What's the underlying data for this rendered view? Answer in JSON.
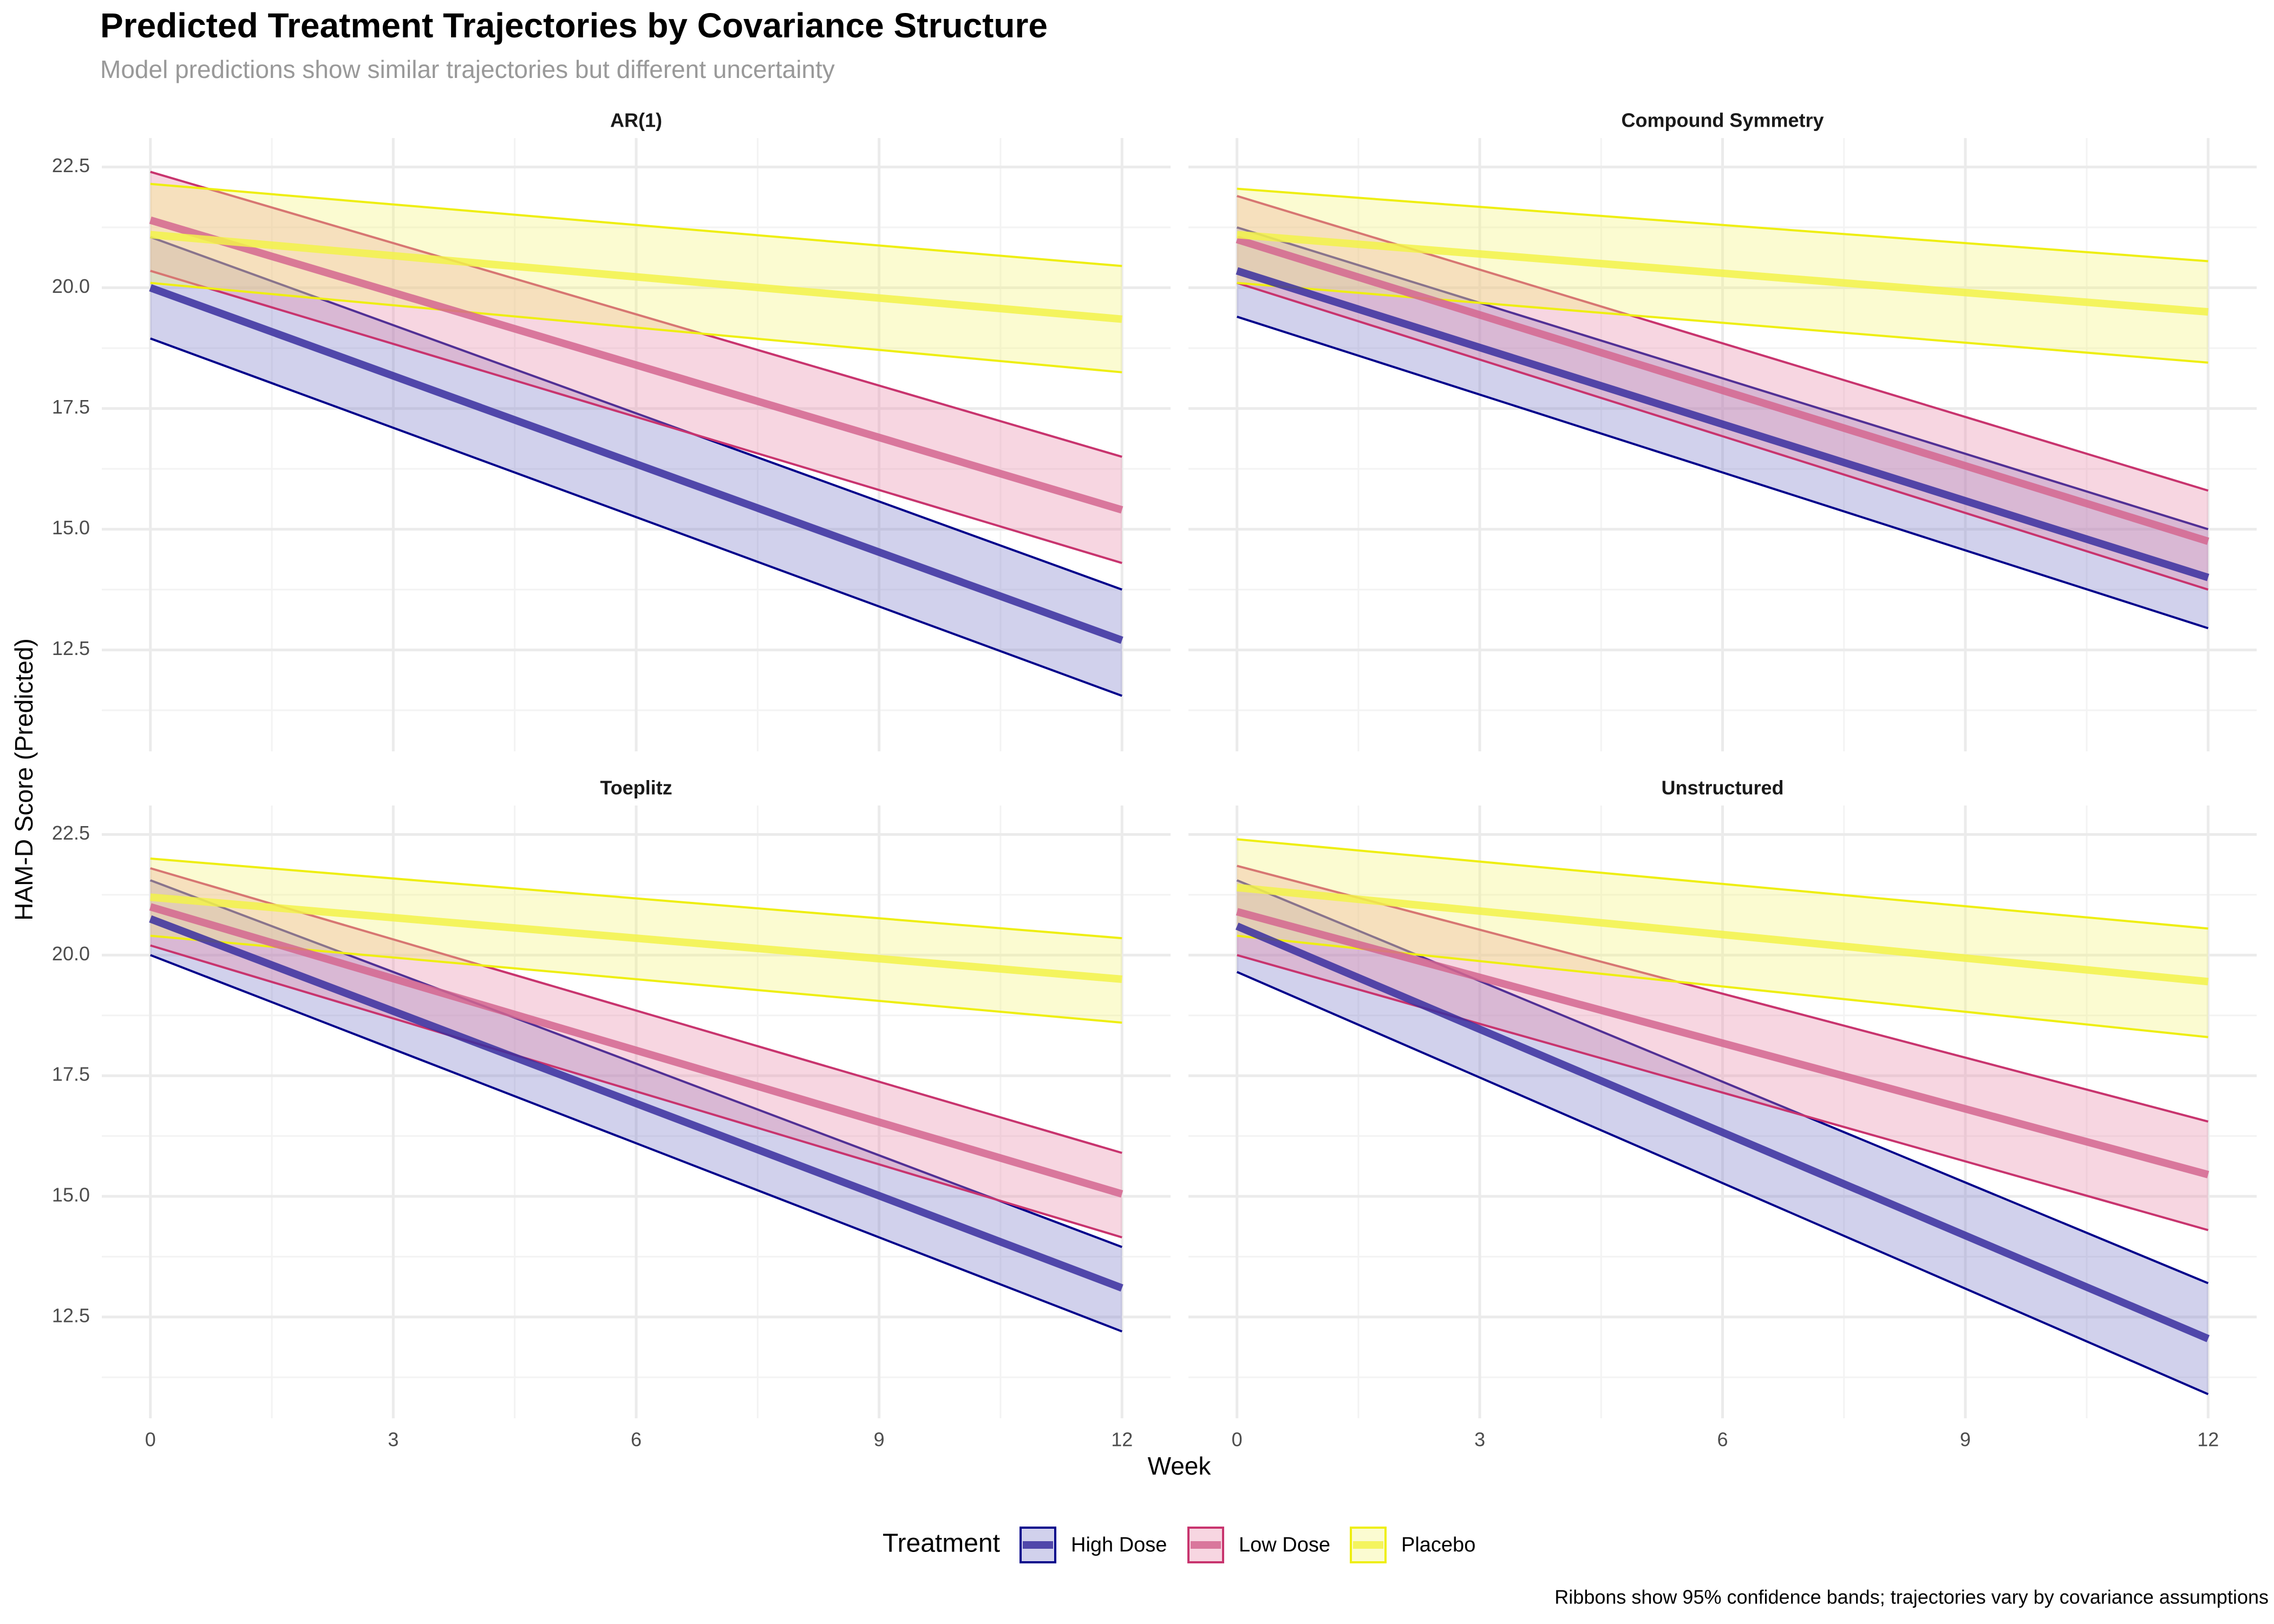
{
  "title": "Predicted Treatment Trajectories by Covariance Structure",
  "subtitle": "Model predictions show similar trajectories but different uncertainty",
  "x_label": "Week",
  "y_label": "HAM-D Score (Predicted)",
  "legend_title": "Treatment",
  "caption": "Ribbons show 95% confidence bands; trajectories vary by covariance assumptions",
  "chart_data": [
    {
      "type": "line",
      "title": "AR(1)",
      "x": [
        0,
        12
      ],
      "xlim": [
        -0.6,
        12.6
      ],
      "xticks": [
        0,
        3,
        6,
        9,
        12
      ],
      "ylim": [
        10.4,
        23.1
      ],
      "yticks": [
        12.5,
        {
          "value": 15,
          "label": "15.0"
        },
        17.5,
        {
          "value": 20,
          "label": "20.0"
        },
        22.5
      ],
      "grid": true,
      "series": [
        {
          "name": "High Dose",
          "color": "#00008b",
          "line_color": "#3a2f9f",
          "fill": "#7b7bc8",
          "values": [
            20.0,
            12.7
          ],
          "lower": [
            18.95,
            11.55
          ],
          "upper": [
            21.05,
            13.75
          ]
        },
        {
          "name": "Low Dose",
          "color": "#c8346e",
          "line_color": "#d4668f",
          "fill": "#e889a8",
          "values": [
            21.4,
            15.4
          ],
          "lower": [
            20.35,
            14.3
          ],
          "upper": [
            22.4,
            16.5
          ]
        },
        {
          "name": "Placebo",
          "color": "#eeee10",
          "line_color": "#f2f24a",
          "fill": "#f4f47a",
          "values": [
            21.1,
            19.35
          ],
          "lower": [
            20.1,
            18.25
          ],
          "upper": [
            22.15,
            20.45
          ]
        }
      ]
    },
    {
      "type": "line",
      "title": "Compound Symmetry",
      "x": [
        0,
        12
      ],
      "xlim": [
        -0.6,
        12.6
      ],
      "xticks": [
        0,
        3,
        6,
        9,
        12
      ],
      "ylim": [
        10.4,
        23.1
      ],
      "yticks": [
        12.5,
        {
          "value": 15,
          "label": "15.0"
        },
        17.5,
        {
          "value": 20,
          "label": "20.0"
        },
        22.5
      ],
      "grid": true,
      "series": [
        {
          "name": "High Dose",
          "color": "#00008b",
          "line_color": "#3a2f9f",
          "fill": "#7b7bc8",
          "values": [
            20.35,
            14.0
          ],
          "lower": [
            19.4,
            12.95
          ],
          "upper": [
            21.25,
            15.0
          ]
        },
        {
          "name": "Low Dose",
          "color": "#c8346e",
          "line_color": "#d4668f",
          "fill": "#e889a8",
          "values": [
            21.0,
            14.75
          ],
          "lower": [
            20.1,
            13.75
          ],
          "upper": [
            21.9,
            15.8
          ]
        },
        {
          "name": "Placebo",
          "color": "#eeee10",
          "line_color": "#f2f24a",
          "fill": "#f4f47a",
          "values": [
            21.1,
            19.5
          ],
          "lower": [
            20.1,
            18.45
          ],
          "upper": [
            22.05,
            20.55
          ]
        }
      ]
    },
    {
      "type": "line",
      "title": "Toeplitz",
      "x": [
        0,
        12
      ],
      "xlim": [
        -0.6,
        12.6
      ],
      "xticks": [
        0,
        3,
        6,
        9,
        12
      ],
      "ylim": [
        10.4,
        23.1
      ],
      "yticks": [
        12.5,
        {
          "value": 15,
          "label": "15.0"
        },
        17.5,
        {
          "value": 20,
          "label": "20.0"
        },
        22.5
      ],
      "grid": true,
      "series": [
        {
          "name": "High Dose",
          "color": "#00008b",
          "line_color": "#3a2f9f",
          "fill": "#7b7bc8",
          "values": [
            20.75,
            13.1
          ],
          "lower": [
            20.0,
            12.2
          ],
          "upper": [
            21.55,
            13.95
          ]
        },
        {
          "name": "Low Dose",
          "color": "#c8346e",
          "line_color": "#d4668f",
          "fill": "#e889a8",
          "values": [
            21.0,
            15.05
          ],
          "lower": [
            20.2,
            14.15
          ],
          "upper": [
            21.8,
            15.9
          ]
        },
        {
          "name": "Placebo",
          "color": "#eeee10",
          "line_color": "#f2f24a",
          "fill": "#f4f47a",
          "values": [
            21.2,
            19.5
          ],
          "lower": [
            20.4,
            18.6
          ],
          "upper": [
            22.0,
            20.35
          ]
        }
      ]
    },
    {
      "type": "line",
      "title": "Unstructured",
      "x": [
        0,
        12
      ],
      "xlim": [
        -0.6,
        12.6
      ],
      "xticks": [
        0,
        3,
        6,
        9,
        12
      ],
      "ylim": [
        10.4,
        23.1
      ],
      "yticks": [
        12.5,
        {
          "value": 15,
          "label": "15.0"
        },
        17.5,
        {
          "value": 20,
          "label": "20.0"
        },
        22.5
      ],
      "grid": true,
      "series": [
        {
          "name": "High Dose",
          "color": "#00008b",
          "line_color": "#3a2f9f",
          "fill": "#7b7bc8",
          "values": [
            20.6,
            12.05
          ],
          "lower": [
            19.65,
            10.9
          ],
          "upper": [
            21.55,
            13.2
          ]
        },
        {
          "name": "Low Dose",
          "color": "#c8346e",
          "line_color": "#d4668f",
          "fill": "#e889a8",
          "values": [
            20.9,
            15.45
          ],
          "lower": [
            20.0,
            14.3
          ],
          "upper": [
            21.85,
            16.55
          ]
        },
        {
          "name": "Placebo",
          "color": "#eeee10",
          "line_color": "#f2f24a",
          "fill": "#f4f47a",
          "values": [
            21.4,
            19.45
          ],
          "lower": [
            20.4,
            18.3
          ],
          "upper": [
            22.4,
            20.55
          ]
        }
      ]
    }
  ]
}
